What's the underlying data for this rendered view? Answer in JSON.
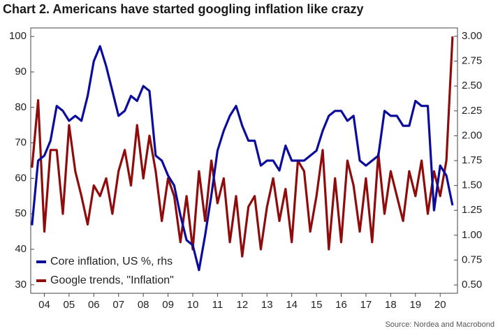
{
  "chart_data": {
    "type": "line",
    "title": "Chart 2. Americans have started googling inflation like crazy",
    "source": "Source: Nordea and Macrobond",
    "x": [
      2004.0,
      2004.25,
      2004.5,
      2004.75,
      2005.0,
      2005.25,
      2005.5,
      2005.75,
      2006.0,
      2006.25,
      2006.5,
      2006.75,
      2007.0,
      2007.25,
      2007.5,
      2007.75,
      2008.0,
      2008.25,
      2008.5,
      2008.75,
      2009.0,
      2009.25,
      2009.5,
      2009.75,
      2010.0,
      2010.25,
      2010.5,
      2010.75,
      2011.0,
      2011.25,
      2011.5,
      2011.75,
      2012.0,
      2012.25,
      2012.5,
      2012.75,
      2013.0,
      2013.25,
      2013.5,
      2013.75,
      2014.0,
      2014.25,
      2014.5,
      2014.75,
      2015.0,
      2015.25,
      2015.5,
      2015.75,
      2016.0,
      2016.25,
      2016.5,
      2016.75,
      2017.0,
      2017.25,
      2017.5,
      2017.75,
      2018.0,
      2018.25,
      2018.5,
      2018.75,
      2019.0,
      2019.25,
      2019.5,
      2019.75,
      2020.0,
      2020.25,
      2020.5,
      2020.75,
      2021.0
    ],
    "series": [
      {
        "name": "Core inflation, US %, rhs",
        "color": "#0c0c9c",
        "axis": "y2",
        "values": [
          1.1,
          1.75,
          1.8,
          1.95,
          2.3,
          2.25,
          2.15,
          2.2,
          2.15,
          2.4,
          2.75,
          2.9,
          2.7,
          2.45,
          2.2,
          2.25,
          2.4,
          2.35,
          2.5,
          2.45,
          1.8,
          1.75,
          1.6,
          1.5,
          1.2,
          0.95,
          0.9,
          0.65,
          1.0,
          1.4,
          1.85,
          2.05,
          2.2,
          2.3,
          2.1,
          1.95,
          1.95,
          1.7,
          1.75,
          1.75,
          1.65,
          1.9,
          1.75,
          1.75,
          1.75,
          1.8,
          1.85,
          2.05,
          2.2,
          2.25,
          2.25,
          2.15,
          2.2,
          1.75,
          1.7,
          1.75,
          1.8,
          2.25,
          2.2,
          2.2,
          2.1,
          2.1,
          2.35,
          2.3,
          2.3,
          1.25,
          1.7,
          1.6,
          1.3
        ]
      },
      {
        "name": "Google trends, \"Inflation\"",
        "color": "#8e0c0c",
        "values": [
          63,
          82,
          45,
          68,
          68,
          50,
          75,
          62,
          55,
          47,
          58,
          55,
          60,
          50,
          62,
          68,
          58,
          75,
          60,
          72,
          62,
          48,
          60,
          55,
          42,
          55,
          40,
          62,
          48,
          65,
          53,
          60,
          42,
          55,
          38,
          52,
          55,
          40,
          52,
          60,
          48,
          57,
          42,
          65,
          62,
          45,
          55,
          68,
          40,
          60,
          42,
          65,
          58,
          45,
          60,
          42,
          67,
          50,
          62,
          55,
          48,
          62,
          55,
          65,
          50,
          62,
          55,
          65,
          100
        ]
      }
    ],
    "xlim": [
      2003.95,
      2021.2
    ],
    "xticks": [
      {
        "value": 2004.5,
        "label": "04"
      },
      {
        "value": 2005.5,
        "label": "05"
      },
      {
        "value": 2006.5,
        "label": "06"
      },
      {
        "value": 2007.5,
        "label": "07"
      },
      {
        "value": 2008.5,
        "label": "08"
      },
      {
        "value": 2009.5,
        "label": "09"
      },
      {
        "value": 2010.5,
        "label": "10"
      },
      {
        "value": 2011.5,
        "label": "11"
      },
      {
        "value": 2012.5,
        "label": "12"
      },
      {
        "value": 2013.5,
        "label": "13"
      },
      {
        "value": 2014.5,
        "label": "14"
      },
      {
        "value": 2015.5,
        "label": "15"
      },
      {
        "value": 2016.5,
        "label": "16"
      },
      {
        "value": 2017.5,
        "label": "17"
      },
      {
        "value": 2018.5,
        "label": "18"
      },
      {
        "value": 2019.5,
        "label": "19"
      },
      {
        "value": 2020.5,
        "label": "20"
      }
    ],
    "ylim": [
      27.6,
      102.4
    ],
    "yticks": [
      30,
      40,
      50,
      60,
      70,
      80,
      90,
      100
    ],
    "y2lim": [
      0.416,
      3.084
    ],
    "y2ticks": [
      {
        "value": 0.5,
        "label": "0.50"
      },
      {
        "value": 0.75,
        "label": "0.75"
      },
      {
        "value": 1.0,
        "label": "1.00"
      },
      {
        "value": 1.25,
        "label": "1.25"
      },
      {
        "value": 1.5,
        "label": "1.50"
      },
      {
        "value": 1.75,
        "label": "1.75"
      },
      {
        "value": 2.0,
        "label": "2.00"
      },
      {
        "value": 2.25,
        "label": "2.25"
      },
      {
        "value": 2.5,
        "label": "2.50"
      },
      {
        "value": 2.75,
        "label": "2.75"
      },
      {
        "value": 3.0,
        "label": "3.00"
      }
    ],
    "grid": false,
    "legend": "lower-left"
  }
}
